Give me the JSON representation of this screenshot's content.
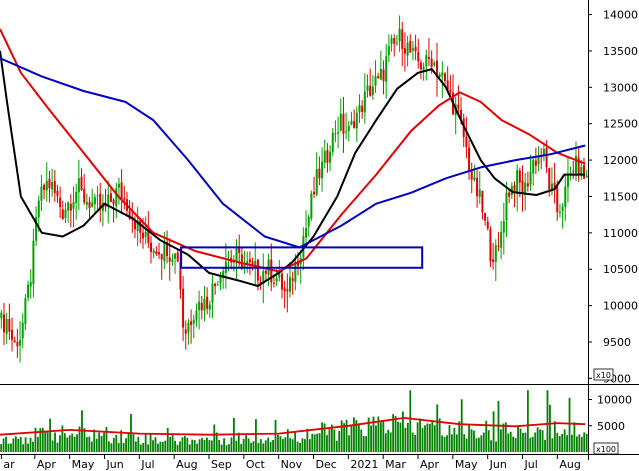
{
  "chart_data": [
    {
      "type": "candlestick",
      "panel": "price",
      "ylim": [
        8950,
        14200
      ],
      "y_ticks": [
        9000,
        9500,
        10000,
        10500,
        11000,
        11500,
        12000,
        12500,
        13000,
        13500,
        14000
      ],
      "y_tick_labels": [
        "9000",
        "9500",
        "10000",
        "10500",
        "11000",
        "11500",
        "12000",
        "12500",
        "13000",
        "13500",
        "14000"
      ],
      "multiplier_label": "x10",
      "grid": false,
      "colors": {
        "up": "#00a000",
        "down": "#e00000",
        "ma_fast": "#000000",
        "ma_mid": "#e00000",
        "ma_slow": "#0000c0",
        "box": "#0000c0"
      },
      "highlight_box": {
        "x_start": 26.3,
        "x_end": 28.03,
        "y_low": 10520,
        "y_high": 10800
      },
      "close_series": [
        {
          "x": 25.05,
          "y": 9800
        },
        {
          "x": 25.1,
          "y": 9450
        },
        {
          "x": 25.15,
          "y": 9600
        },
        {
          "x": 25.22,
          "y": 10400
        },
        {
          "x": 25.28,
          "y": 11500
        },
        {
          "x": 25.35,
          "y": 11700
        },
        {
          "x": 25.45,
          "y": 11300
        },
        {
          "x": 25.55,
          "y": 11600
        },
        {
          "x": 25.65,
          "y": 11400
        },
        {
          "x": 25.75,
          "y": 11300
        },
        {
          "x": 25.85,
          "y": 11600
        },
        {
          "x": 25.95,
          "y": 11250
        },
        {
          "x": 26.0,
          "y": 11000
        },
        {
          "x": 26.1,
          "y": 10800
        },
        {
          "x": 26.2,
          "y": 10780
        },
        {
          "x": 26.28,
          "y": 10650
        },
        {
          "x": 26.32,
          "y": 9600
        },
        {
          "x": 26.4,
          "y": 10000
        },
        {
          "x": 26.48,
          "y": 10050
        },
        {
          "x": 26.55,
          "y": 10300
        },
        {
          "x": 26.62,
          "y": 10650
        },
        {
          "x": 26.7,
          "y": 10650
        },
        {
          "x": 26.78,
          "y": 10550
        },
        {
          "x": 26.85,
          "y": 10450
        },
        {
          "x": 26.92,
          "y": 10500
        },
        {
          "x": 27.0,
          "y": 10350
        },
        {
          "x": 27.06,
          "y": 10100
        },
        {
          "x": 27.13,
          "y": 10650
        },
        {
          "x": 27.2,
          "y": 11100
        },
        {
          "x": 27.27,
          "y": 11700
        },
        {
          "x": 27.35,
          "y": 12100
        },
        {
          "x": 27.42,
          "y": 12500
        },
        {
          "x": 27.5,
          "y": 12400
        },
        {
          "x": 27.58,
          "y": 12700
        },
        {
          "x": 27.66,
          "y": 13000
        },
        {
          "x": 27.73,
          "y": 13100
        },
        {
          "x": 27.8,
          "y": 13500
        },
        {
          "x": 27.88,
          "y": 13700
        },
        {
          "x": 27.95,
          "y": 13450
        },
        {
          "x": 28.03,
          "y": 13300
        },
        {
          "x": 28.1,
          "y": 13400
        },
        {
          "x": 28.18,
          "y": 13100
        },
        {
          "x": 28.25,
          "y": 12800
        },
        {
          "x": 28.32,
          "y": 12400
        },
        {
          "x": 28.38,
          "y": 11800
        },
        {
          "x": 28.45,
          "y": 11400
        },
        {
          "x": 28.52,
          "y": 10800
        },
        {
          "x": 28.57,
          "y": 10650
        },
        {
          "x": 28.63,
          "y": 11500
        },
        {
          "x": 28.7,
          "y": 11700
        },
        {
          "x": 28.77,
          "y": 11600
        },
        {
          "x": 28.83,
          "y": 12000
        },
        {
          "x": 28.9,
          "y": 12100
        },
        {
          "x": 28.95,
          "y": 11600
        },
        {
          "x": 29.0,
          "y": 11300
        },
        {
          "x": 29.05,
          "y": 11500
        },
        {
          "x": 29.12,
          "y": 11950
        },
        {
          "x": 29.2,
          "y": 11750
        }
      ],
      "moving_averages": [
        {
          "name": "",
          "color": "#000000",
          "points": [
            {
              "x": 25.0,
              "y": 13500
            },
            {
              "x": 25.05,
              "y": 12800
            },
            {
              "x": 25.15,
              "y": 11500
            },
            {
              "x": 25.3,
              "y": 11000
            },
            {
              "x": 25.45,
              "y": 10950
            },
            {
              "x": 25.6,
              "y": 11100
            },
            {
              "x": 25.75,
              "y": 11400
            },
            {
              "x": 25.95,
              "y": 11200
            },
            {
              "x": 26.15,
              "y": 10900
            },
            {
              "x": 26.35,
              "y": 10700
            },
            {
              "x": 26.5,
              "y": 10450
            },
            {
              "x": 26.7,
              "y": 10350
            },
            {
              "x": 26.85,
              "y": 10270
            },
            {
              "x": 27.0,
              "y": 10450
            },
            {
              "x": 27.1,
              "y": 10600
            },
            {
              "x": 27.25,
              "y": 10950
            },
            {
              "x": 27.42,
              "y": 11500
            },
            {
              "x": 27.55,
              "y": 12100
            },
            {
              "x": 27.7,
              "y": 12550
            },
            {
              "x": 27.85,
              "y": 12980
            },
            {
              "x": 28.0,
              "y": 13200
            },
            {
              "x": 28.1,
              "y": 13250
            },
            {
              "x": 28.2,
              "y": 13000
            },
            {
              "x": 28.32,
              "y": 12500
            },
            {
              "x": 28.45,
              "y": 12000
            },
            {
              "x": 28.55,
              "y": 11750
            },
            {
              "x": 28.68,
              "y": 11560
            },
            {
              "x": 28.85,
              "y": 11520
            },
            {
              "x": 28.98,
              "y": 11600
            },
            {
              "x": 29.05,
              "y": 11800
            },
            {
              "x": 29.2,
              "y": 11800
            }
          ]
        },
        {
          "name": "",
          "color": "#e00000",
          "points": [
            {
              "x": 25.0,
              "y": 13800
            },
            {
              "x": 25.15,
              "y": 13200
            },
            {
              "x": 25.35,
              "y": 12700
            },
            {
              "x": 25.6,
              "y": 12100
            },
            {
              "x": 25.85,
              "y": 11500
            },
            {
              "x": 26.1,
              "y": 11000
            },
            {
              "x": 26.4,
              "y": 10750
            },
            {
              "x": 26.7,
              "y": 10600
            },
            {
              "x": 27.0,
              "y": 10470
            },
            {
              "x": 27.2,
              "y": 10650
            },
            {
              "x": 27.45,
              "y": 11250
            },
            {
              "x": 27.7,
              "y": 11800
            },
            {
              "x": 27.95,
              "y": 12400
            },
            {
              "x": 28.15,
              "y": 12750
            },
            {
              "x": 28.3,
              "y": 12930
            },
            {
              "x": 28.45,
              "y": 12800
            },
            {
              "x": 28.6,
              "y": 12550
            },
            {
              "x": 28.8,
              "y": 12350
            },
            {
              "x": 29.0,
              "y": 12100
            },
            {
              "x": 29.2,
              "y": 11950
            }
          ]
        },
        {
          "name": "",
          "color": "#0000c0",
          "points": [
            {
              "x": 25.0,
              "y": 13400
            },
            {
              "x": 25.3,
              "y": 13150
            },
            {
              "x": 25.6,
              "y": 12950
            },
            {
              "x": 25.9,
              "y": 12800
            },
            {
              "x": 26.1,
              "y": 12550
            },
            {
              "x": 26.35,
              "y": 12000
            },
            {
              "x": 26.6,
              "y": 11400
            },
            {
              "x": 26.9,
              "y": 10950
            },
            {
              "x": 27.15,
              "y": 10800
            },
            {
              "x": 27.45,
              "y": 11100
            },
            {
              "x": 27.7,
              "y": 11400
            },
            {
              "x": 27.95,
              "y": 11550
            },
            {
              "x": 28.2,
              "y": 11750
            },
            {
              "x": 28.45,
              "y": 11900
            },
            {
              "x": 28.7,
              "y": 12000
            },
            {
              "x": 28.95,
              "y": 12080
            },
            {
              "x": 29.2,
              "y": 12200
            }
          ]
        }
      ]
    },
    {
      "type": "bar",
      "panel": "volume",
      "ylim": [
        0,
        12000
      ],
      "y_ticks": [
        5000,
        10000
      ],
      "y_tick_labels": [
        "5000",
        "10000"
      ],
      "multiplier_label": "x100",
      "colors": {
        "bars": "#008000",
        "ma": "#e00000"
      },
      "volume_profile": [
        {
          "x": 25.0,
          "y": 2800
        },
        {
          "x": 25.4,
          "y": 3800
        },
        {
          "x": 25.8,
          "y": 3600
        },
        {
          "x": 26.2,
          "y": 2500
        },
        {
          "x": 26.6,
          "y": 2800
        },
        {
          "x": 27.0,
          "y": 3200
        },
        {
          "x": 27.4,
          "y": 4500
        },
        {
          "x": 27.8,
          "y": 6000
        },
        {
          "x": 28.2,
          "y": 4800
        },
        {
          "x": 28.6,
          "y": 4300
        },
        {
          "x": 29.0,
          "y": 5200
        },
        {
          "x": 29.2,
          "y": 4600
        }
      ],
      "volume_ma": [
        {
          "x": 25.0,
          "y": 3300
        },
        {
          "x": 25.5,
          "y": 4200
        },
        {
          "x": 26.0,
          "y": 3500
        },
        {
          "x": 26.5,
          "y": 3300
        },
        {
          "x": 27.0,
          "y": 3500
        },
        {
          "x": 27.5,
          "y": 5000
        },
        {
          "x": 27.9,
          "y": 6500
        },
        {
          "x": 28.3,
          "y": 5300
        },
        {
          "x": 28.7,
          "y": 4900
        },
        {
          "x": 29.0,
          "y": 5500
        },
        {
          "x": 29.2,
          "y": 5300
        }
      ]
    }
  ],
  "x_axis": {
    "labels": [
      {
        "text": "ar",
        "x": 25.01
      },
      {
        "text": "Apr",
        "x": 25.25
      },
      {
        "text": "May",
        "x": 25.5
      },
      {
        "text": "Jun",
        "x": 25.75
      },
      {
        "text": "Jul",
        "x": 26.0
      },
      {
        "text": "Aug",
        "x": 26.25
      },
      {
        "text": "Sep",
        "x": 26.5
      },
      {
        "text": "Oct",
        "x": 26.75
      },
      {
        "text": "Nov",
        "x": 27.0
      },
      {
        "text": "Dec",
        "x": 27.25
      },
      {
        "text": "2021",
        "x": 27.5
      },
      {
        "text": "Mar",
        "x": 27.75
      },
      {
        "text": "Apr",
        "x": 28.0
      },
      {
        "text": "May",
        "x": 28.25
      },
      {
        "text": "Jun",
        "x": 28.5
      },
      {
        "text": "Jul",
        "x": 28.75
      },
      {
        "text": "Aug",
        "x": 29.0
      }
    ]
  }
}
